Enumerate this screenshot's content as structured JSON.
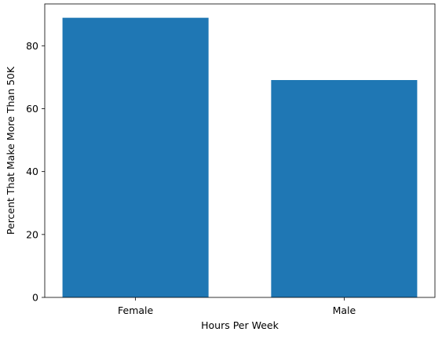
{
  "chart_data": {
    "type": "bar",
    "title": "",
    "xlabel": "Hours Per Week",
    "ylabel": "Percent That Make More Than 50K",
    "categories": [
      "Female",
      "Male"
    ],
    "values": [
      88.9,
      69.1
    ],
    "ylim": [
      0,
      93.3
    ],
    "yticks": [
      0,
      20,
      40,
      60,
      80
    ],
    "grid": false,
    "bar_color": "#1f77b4"
  }
}
